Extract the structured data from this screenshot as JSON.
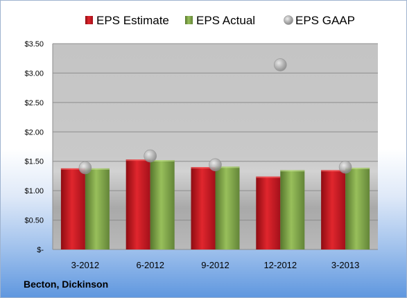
{
  "colors": {
    "estimate": "#c8171f",
    "actual": "#7fa34a",
    "gaap": "#a9a9a9"
  },
  "company_label": "Becton, Dickinson",
  "chart_data": {
    "type": "bar",
    "categories": [
      "3-2012",
      "6-2012",
      "9-2012",
      "12-2012",
      "3-2013"
    ],
    "series": [
      {
        "name": "EPS Estimate",
        "kind": "bar",
        "values": [
          1.38,
          1.53,
          1.4,
          1.24,
          1.35
        ]
      },
      {
        "name": "EPS Actual",
        "kind": "bar",
        "values": [
          1.38,
          1.52,
          1.41,
          1.35,
          1.39
        ]
      },
      {
        "name": "EPS GAAP",
        "kind": "scatter",
        "values": [
          1.39,
          1.59,
          1.44,
          3.14,
          1.4
        ]
      }
    ],
    "ylim": [
      0,
      3.5
    ],
    "y_ticks": [
      0,
      0.5,
      1.0,
      1.5,
      2.0,
      2.5,
      3.0,
      3.5
    ],
    "y_tick_labels": [
      "$-",
      "$0.50",
      "$1.00",
      "$1.50",
      "$2.00",
      "$2.50",
      "$3.00",
      "$3.50"
    ],
    "legend_position": "top",
    "grid": true
  }
}
